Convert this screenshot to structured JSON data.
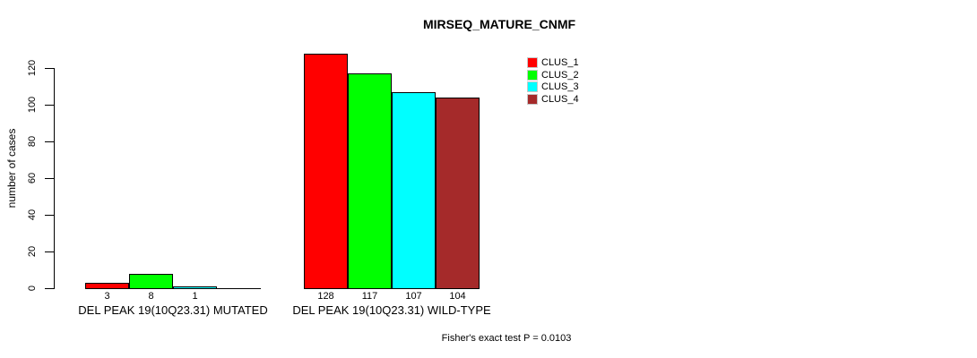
{
  "chart_data": {
    "type": "bar",
    "title": "MIRSEQ_MATURE_CNMF",
    "ylabel": "number of cases",
    "yticks": [
      0,
      20,
      40,
      60,
      80,
      100,
      120
    ],
    "ylim": [
      0,
      128
    ],
    "grid": false,
    "legend_position": "top-right",
    "categories": [
      "DEL PEAK 19(10Q23.31) MUTATED",
      "DEL PEAK 19(10Q23.31) WILD-TYPE"
    ],
    "series": [
      {
        "name": "CLUS_1",
        "color": "#ff0000",
        "values": [
          3,
          128
        ],
        "value_labels": [
          "3",
          "128"
        ]
      },
      {
        "name": "CLUS_2",
        "color": "#00ff00",
        "values": [
          8,
          117
        ],
        "value_labels": [
          "8",
          "117"
        ]
      },
      {
        "name": "CLUS_3",
        "color": "#00ffff",
        "values": [
          1,
          107
        ],
        "value_labels": [
          "1",
          "107"
        ]
      },
      {
        "name": "CLUS_4",
        "color": "#a52a2a",
        "values": [
          0,
          104
        ],
        "value_labels": [
          "",
          "104"
        ]
      }
    ],
    "annotation": "Fisher's exact test P = 0.0103"
  }
}
